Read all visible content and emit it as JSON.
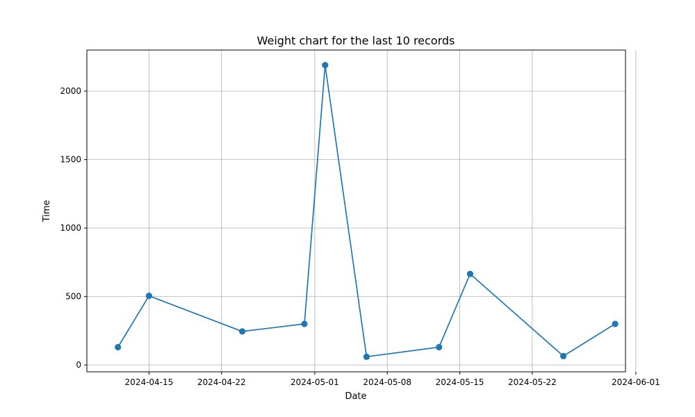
{
  "chart_data": {
    "type": "line",
    "title": "Weight chart for the last 10 records",
    "xlabel": "Date",
    "ylabel": "Time",
    "x_axis": "date",
    "xlim": [
      "2024-04-09",
      "2024-05-31"
    ],
    "ylim": [
      -50,
      2300
    ],
    "x_ticks": [
      "2024-04-15",
      "2024-04-22",
      "2024-05-01",
      "2024-05-08",
      "2024-05-15",
      "2024-05-22",
      "2024-06-01"
    ],
    "y_ticks": [
      0,
      500,
      1000,
      1500,
      2000
    ],
    "grid": true,
    "series": [
      {
        "color": "#1f77b4",
        "marker": "circle",
        "points": [
          {
            "x": "2024-04-12",
            "y": 130
          },
          {
            "x": "2024-04-15",
            "y": 505
          },
          {
            "x": "2024-04-24",
            "y": 245
          },
          {
            "x": "2024-04-30",
            "y": 300
          },
          {
            "x": "2024-05-02",
            "y": 2190
          },
          {
            "x": "2024-05-06",
            "y": 60
          },
          {
            "x": "2024-05-13",
            "y": 130
          },
          {
            "x": "2024-05-16",
            "y": 665
          },
          {
            "x": "2024-05-25",
            "y": 65
          },
          {
            "x": "2024-05-30",
            "y": 300
          }
        ]
      }
    ]
  }
}
